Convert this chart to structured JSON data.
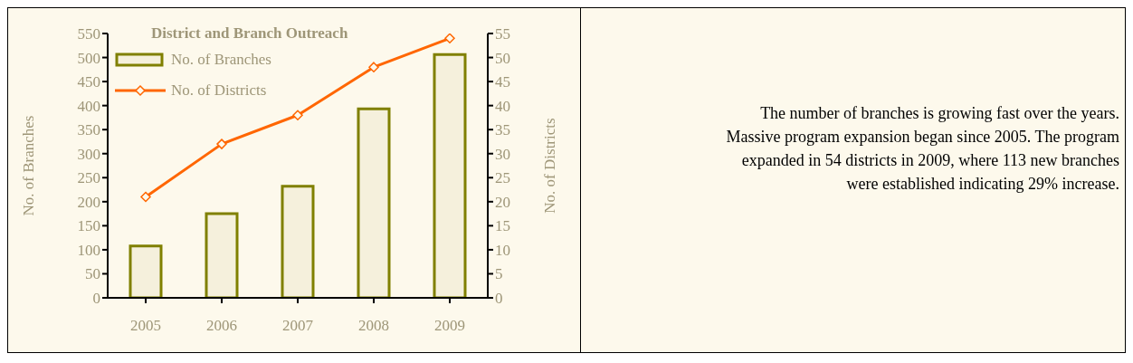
{
  "chart_data": {
    "type": "bar",
    "title": "District and Branch Outreach",
    "categories": [
      "2005",
      "2006",
      "2007",
      "2008",
      "2009"
    ],
    "series": [
      {
        "name": "No. of Branches",
        "color": "#808000",
        "values": [
          108,
          175,
          232,
          393,
          506
        ]
      },
      {
        "name": "No. of Districts",
        "type": "line",
        "axis": "y2",
        "color": "#ff6600",
        "values": [
          21,
          32,
          38,
          48,
          54
        ],
        "marker": "diamond"
      }
    ],
    "ylabel": "No. of Branches",
    "y2label": "No. of Districts",
    "ylim": [
      0,
      550
    ],
    "yticks": [
      0,
      50,
      100,
      150,
      200,
      250,
      300,
      350,
      400,
      450,
      500,
      550
    ],
    "y2lim": [
      0,
      55
    ],
    "y2ticks": [
      0,
      5,
      10,
      15,
      20,
      25,
      30,
      35,
      40,
      45,
      50,
      55
    ],
    "legend": "top left",
    "grid": false,
    "annotations": [
      "The number of branches is growing  fast over the years. Massive program expansion began since 2005. The program expanded in 54 districts in 2009, where 113 new branches were established indicating 29% increase."
    ]
  }
}
